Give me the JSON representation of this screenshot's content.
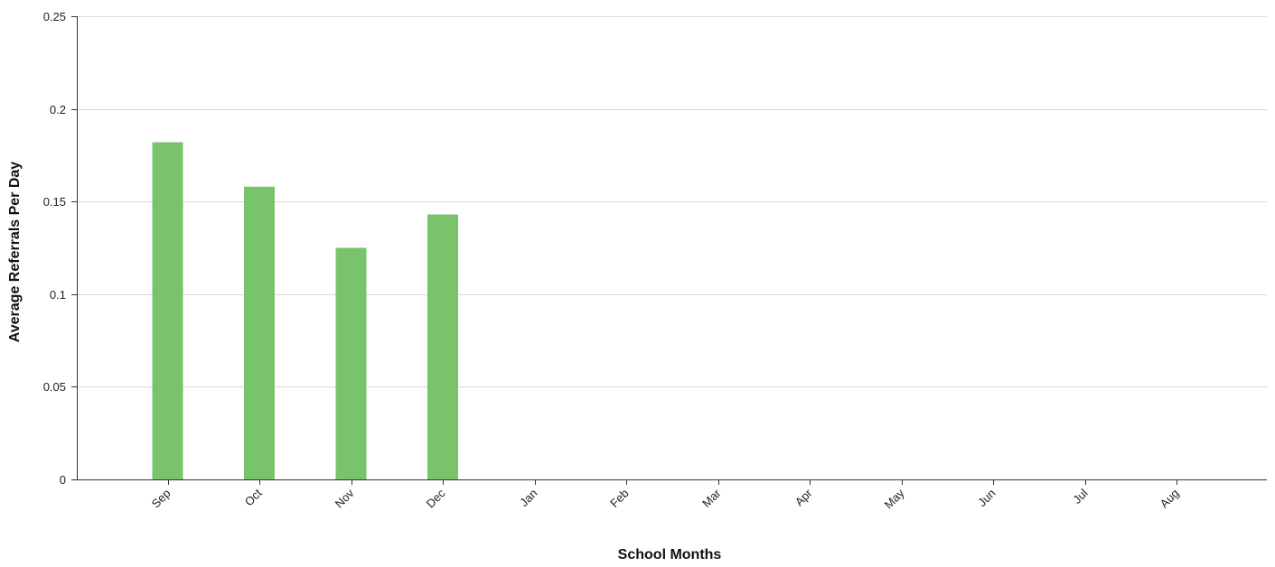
{
  "chart_data": {
    "type": "bar",
    "xlabel": "School Months",
    "ylabel": "Average Referrals Per Day",
    "categories": [
      "Sep",
      "Oct",
      "Nov",
      "Dec",
      "Jan",
      "Feb",
      "Mar",
      "Apr",
      "May",
      "Jun",
      "Jul",
      "Aug"
    ],
    "values": [
      0.182,
      0.158,
      0.125,
      0.143,
      0,
      0,
      0,
      0,
      0,
      0,
      0,
      0
    ],
    "ylim": [
      0,
      0.25
    ],
    "yticks": [
      "0",
      "0.05",
      "0.1",
      "0.15",
      "0.2",
      "0.25"
    ],
    "grid": "horizontal",
    "legend": "none",
    "bar_color": "#79c36d",
    "grid_color": "#d8d8d8",
    "axis_color": "#333333"
  }
}
